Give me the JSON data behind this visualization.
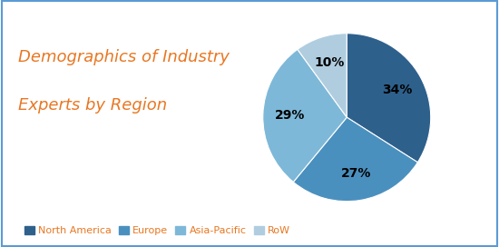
{
  "title_line1": "Demographics of Industry",
  "title_line2": "Experts by Region",
  "title_color": "#E87722",
  "title_fontsize": 13,
  "slices": [
    34,
    27,
    29,
    10
  ],
  "labels": [
    "North America",
    "Europe",
    "Asia-Pacific",
    "RoW"
  ],
  "colors": [
    "#2E608C",
    "#4A90BF",
    "#7EB8D8",
    "#B0CDE0"
  ],
  "pct_labels": [
    "34%",
    "27%",
    "29%",
    "10%"
  ],
  "legend_text_color": "#E87722",
  "background_color": "#FFFFFF",
  "border_color": "#5B9BD5",
  "startangle": 90
}
